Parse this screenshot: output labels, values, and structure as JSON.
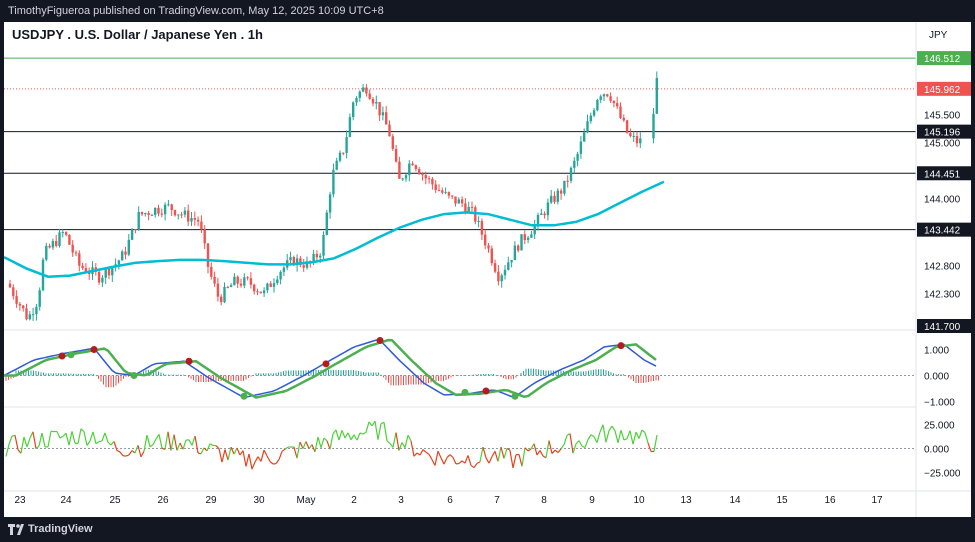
{
  "header": {
    "publisher_line": "TimothyFigueroa published on TradingView.com, May 12, 2025 10:09 UTC+8"
  },
  "footer": {
    "brand": "TradingView"
  },
  "colors": {
    "up": "#26a69a",
    "down": "#ef5350",
    "ma": "#00bcd4",
    "osc_fast": "#2e5bd8",
    "osc_bull": "#4caf50",
    "osc_bear": "#b71c1c",
    "hist_up": "#26a69a",
    "hist_down": "#ef5350",
    "mom_up": "#4cd137",
    "mom_down": "#e84118",
    "green_line": "#4caf50",
    "red_dotted": "#ef5350"
  },
  "chart_data": [
    {
      "type": "candlestick",
      "title": "USDJPY . U.S. Dollar / Japanese Yen . 1h",
      "currency": "JPY",
      "ylim": [
        141.7,
        146.8
      ],
      "y_ticks": [
        142.3,
        142.8,
        144.0,
        145.0,
        145.5
      ],
      "y_tick_labels": [
        "142.300",
        "142.800",
        "144.000",
        "145.000",
        "145.500"
      ],
      "x_tick_labels": [
        "23",
        "24",
        "25",
        "26",
        "29",
        "30",
        "May",
        "2",
        "3",
        "6",
        "7",
        "8",
        "9",
        "10",
        "13",
        "14",
        "15",
        "16",
        "17"
      ],
      "horizontal_levels": [
        {
          "value": 146.512,
          "label": "146.512",
          "style": "green"
        },
        {
          "value": 145.962,
          "label": "145.962",
          "style": "red-dotted"
        },
        {
          "value": 145.196,
          "label": "145.196",
          "style": "black"
        },
        {
          "value": 144.451,
          "label": "144.451",
          "style": "black"
        },
        {
          "value": 143.442,
          "label": "143.442",
          "style": "black"
        },
        {
          "value": 141.7,
          "label": "141.700",
          "style": "black-label"
        }
      ],
      "moving_average": {
        "points": [
          [
            0,
            142.95
          ],
          [
            1,
            142.75
          ],
          [
            2,
            142.6
          ],
          [
            3,
            142.62
          ],
          [
            4,
            142.7
          ],
          [
            5,
            142.78
          ],
          [
            6,
            142.85
          ],
          [
            7,
            142.88
          ],
          [
            8,
            142.9
          ],
          [
            9,
            142.9
          ],
          [
            10,
            142.88
          ],
          [
            11,
            142.85
          ],
          [
            12,
            142.82
          ],
          [
            13,
            142.82
          ],
          [
            14,
            142.86
          ],
          [
            15,
            142.93
          ],
          [
            16,
            143.1
          ],
          [
            17,
            143.3
          ],
          [
            18,
            143.48
          ],
          [
            19,
            143.62
          ],
          [
            20,
            143.72
          ],
          [
            21,
            143.75
          ],
          [
            22,
            143.72
          ],
          [
            23,
            143.62
          ],
          [
            24,
            143.52
          ],
          [
            25,
            143.52
          ],
          [
            26,
            143.58
          ],
          [
            27,
            143.72
          ],
          [
            28,
            143.92
          ],
          [
            29,
            144.12
          ],
          [
            30,
            144.3
          ]
        ]
      }
    },
    {
      "type": "line",
      "y_ticks": [
        1.0,
        0.0,
        -1.0
      ],
      "y_tick_labels": [
        "1.000",
        "0.000",
        "−1.000"
      ],
      "ylim": [
        -1.1,
        1.6
      ]
    },
    {
      "type": "line",
      "y_ticks": [
        25.0,
        0.0,
        -25.0
      ],
      "y_tick_labels": [
        "25.000",
        "0.000",
        "−25.000"
      ],
      "ylim": [
        -40,
        40
      ]
    }
  ]
}
